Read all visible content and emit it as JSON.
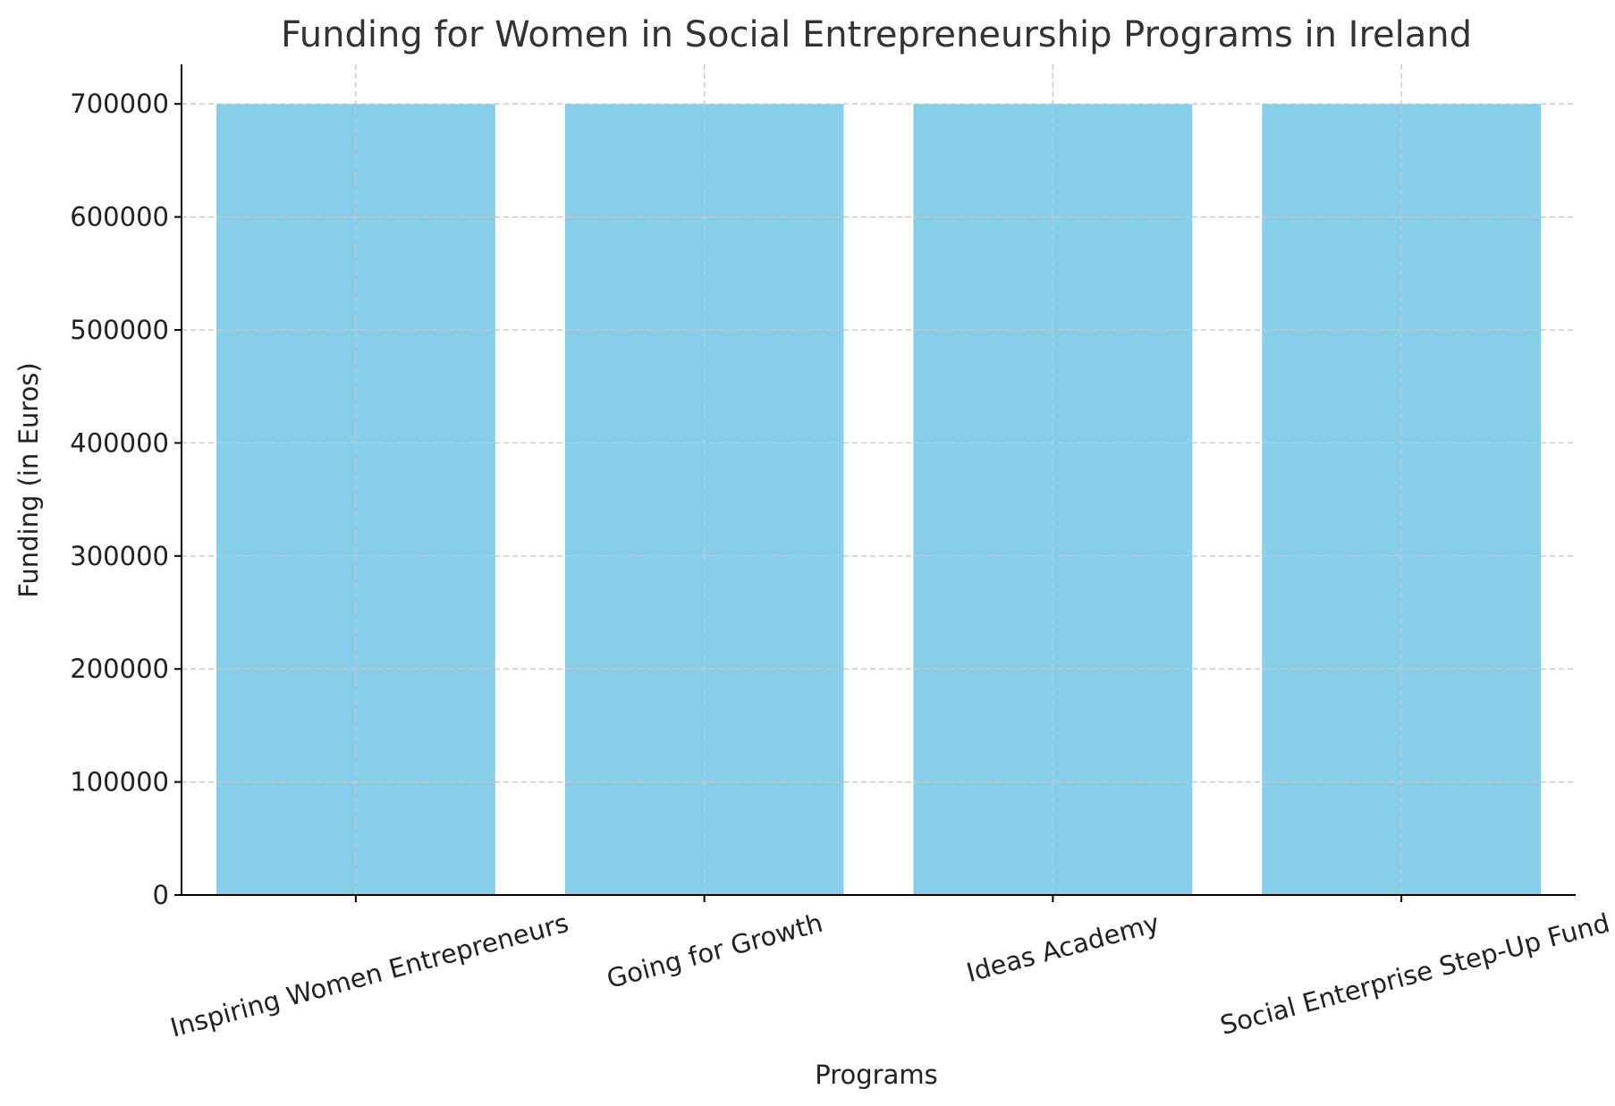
{
  "chart_data": {
    "type": "bar",
    "title": "Funding for Women in Social Entrepreneurship Programs in Ireland",
    "xlabel": "Programs",
    "ylabel": "Funding (in Euros)",
    "categories": [
      "Inspiring Women Entrepreneurs",
      "Going for Growth",
      "Ideas Academy",
      "Social Enterprise Step-Up Fund"
    ],
    "values": [
      700000,
      700000,
      700000,
      700000
    ],
    "ylim": [
      0,
      735000
    ],
    "yticks": [
      0,
      100000,
      200000,
      300000,
      400000,
      500000,
      600000,
      700000
    ],
    "bar_color": "#87ceeb",
    "grid": true,
    "x_tick_rotation_deg": 15
  }
}
